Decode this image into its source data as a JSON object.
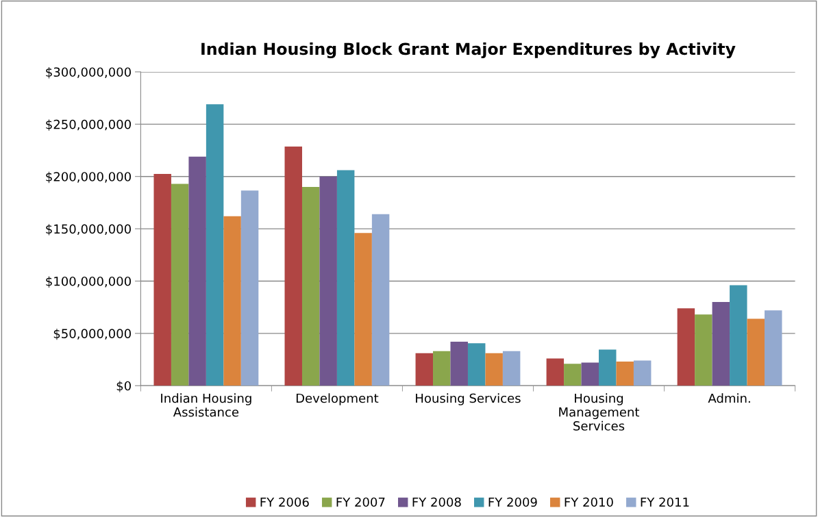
{
  "chart_data": {
    "type": "bar",
    "title": "Indian Housing Block Grant Major Expenditures by Activity",
    "categories": [
      "Indian Housing\nAssistance",
      "Development",
      "Housing Services",
      "Housing\nManagement\nServices",
      "Admin."
    ],
    "series": [
      {
        "name": "FY 2006",
        "color": "#b04543",
        "values": [
          202500000,
          228600000,
          31000000,
          26000000,
          74000000
        ]
      },
      {
        "name": "FY 2007",
        "color": "#8aa64c",
        "values": [
          193000000,
          190000000,
          33000000,
          21000000,
          68000000
        ]
      },
      {
        "name": "FY 2008",
        "color": "#71578f",
        "values": [
          219000000,
          200000000,
          42000000,
          22000000,
          80000000
        ]
      },
      {
        "name": "FY 2009",
        "color": "#4097ae",
        "values": [
          269000000,
          206000000,
          40500000,
          34500000,
          96000000
        ]
      },
      {
        "name": "FY 2010",
        "color": "#db843d",
        "values": [
          162000000,
          146000000,
          31000000,
          23000000,
          64000000
        ]
      },
      {
        "name": "FY 2011",
        "color": "#93a9cf",
        "values": [
          186500000,
          164000000,
          33000000,
          24000000,
          72000000
        ]
      }
    ],
    "ylim": [
      0,
      300000000
    ],
    "yticks": [
      {
        "value": 0,
        "label": "$0"
      },
      {
        "value": 50000000,
        "label": "$50,000,000"
      },
      {
        "value": 100000000,
        "label": "$100,000,000"
      },
      {
        "value": 150000000,
        "label": "$150,000,000"
      },
      {
        "value": 200000000,
        "label": "$200,000,000"
      },
      {
        "value": 250000000,
        "label": "$250,000,000"
      },
      {
        "value": 300000000,
        "label": "$300,000,000"
      }
    ],
    "grid": "y",
    "legend": "bottom"
  }
}
